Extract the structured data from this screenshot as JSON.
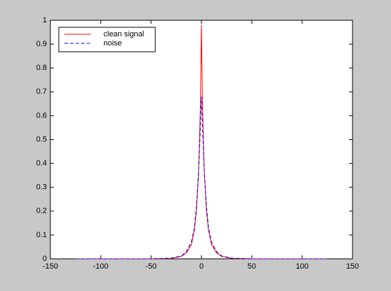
{
  "chart_data": {
    "type": "line",
    "x": [
      -125,
      -50,
      -30,
      -20,
      -15,
      -10,
      -7,
      -5,
      -3,
      -2,
      -1,
      0,
      1,
      2,
      3,
      5,
      7,
      10,
      15,
      20,
      30,
      50,
      125
    ],
    "series": [
      {
        "name": "clean signal",
        "color": "#ff0000",
        "dash": false,
        "values": [
          0,
          0,
          0.002,
          0.01,
          0.025,
          0.06,
          0.12,
          0.2,
          0.35,
          0.48,
          0.65,
          0.98,
          0.65,
          0.48,
          0.35,
          0.2,
          0.12,
          0.06,
          0.025,
          0.01,
          0.002,
          0,
          0
        ]
      },
      {
        "name": "noise",
        "color": "#0000ff",
        "dash": true,
        "values": [
          0,
          0,
          0.003,
          0.012,
          0.03,
          0.07,
          0.13,
          0.22,
          0.35,
          0.45,
          0.56,
          0.68,
          0.56,
          0.45,
          0.35,
          0.22,
          0.13,
          0.07,
          0.03,
          0.012,
          0.003,
          0,
          0
        ]
      }
    ],
    "xlim": [
      -150,
      150
    ],
    "xticks": [
      -150,
      -100,
      -50,
      0,
      50,
      100,
      150
    ],
    "ylim": [
      0,
      1
    ],
    "yticks": [
      0,
      0.1,
      0.2,
      0.3,
      0.4,
      0.5,
      0.6,
      0.7,
      0.8,
      0.9,
      1
    ],
    "legend": "upper-left"
  }
}
